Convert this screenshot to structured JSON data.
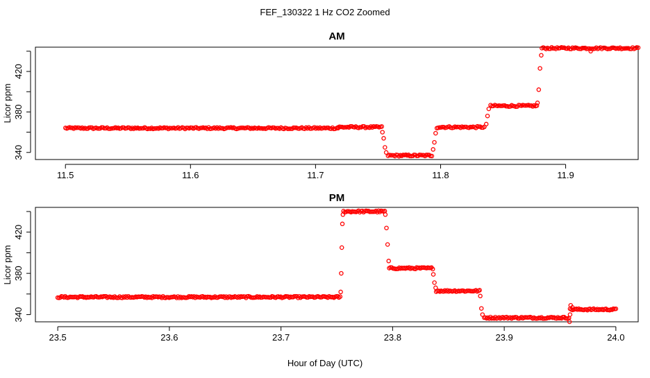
{
  "figure": {
    "title": "FEF_130322  1 Hz CO2 Zoomed",
    "xlabel": "Hour of Day (UTC)"
  },
  "colors": {
    "points": "#ff0000",
    "axis": "#000000",
    "background": "#ffffff"
  },
  "chart_data": [
    {
      "type": "scatter",
      "title": "AM",
      "xlabel": "",
      "ylabel": "Licor ppm",
      "xlim": [
        11.476,
        11.958
      ],
      "ylim": [
        333,
        444
      ],
      "xticks": [
        11.5,
        11.6,
        11.7,
        11.8,
        11.9
      ],
      "xtick_labels": [
        "11.5",
        "11.6",
        "11.7",
        "11.8",
        "11.9"
      ],
      "yticks": [
        340,
        380,
        420
      ],
      "ytick_labels": [
        "340",
        "380",
        "420"
      ],
      "grid": false,
      "marker": "open-circle",
      "series": [
        {
          "segments": [
            {
              "x0": 11.5,
              "x1": 11.718,
              "y": 364
            },
            {
              "x0": 11.718,
              "x1": 11.753,
              "y": 365
            },
            {
              "x0": 11.758,
              "x1": 11.793,
              "y": 337
            },
            {
              "x0": 11.798,
              "x1": 11.835,
              "y": 365
            },
            {
              "x0": 11.84,
              "x1": 11.877,
              "y": 386
            },
            {
              "x0": 11.881,
              "x1": 11.958,
              "y": 443
            }
          ],
          "transitions": [
            {
              "x": 11.7535,
              "y": 360
            },
            {
              "x": 11.7545,
              "y": 354
            },
            {
              "x": 11.7555,
              "y": 345
            },
            {
              "x": 11.7565,
              "y": 340
            },
            {
              "x": 11.794,
              "y": 343
            },
            {
              "x": 11.795,
              "y": 350
            },
            {
              "x": 11.796,
              "y": 359
            },
            {
              "x": 11.797,
              "y": 364
            },
            {
              "x": 11.8365,
              "y": 368
            },
            {
              "x": 11.8375,
              "y": 376
            },
            {
              "x": 11.8385,
              "y": 383
            },
            {
              "x": 11.8775,
              "y": 389
            },
            {
              "x": 11.8785,
              "y": 402
            },
            {
              "x": 11.8795,
              "y": 423
            },
            {
              "x": 11.8805,
              "y": 436
            },
            {
              "x": 11.92,
              "y": 440
            }
          ]
        }
      ]
    },
    {
      "type": "scatter",
      "title": "PM",
      "xlabel": "Hour of Day (UTC)",
      "ylabel": "Licor ppm",
      "xlim": [
        23.48,
        24.02
      ],
      "ylim": [
        333,
        444
      ],
      "xticks": [
        23.5,
        23.6,
        23.7,
        23.8,
        23.9,
        24.0
      ],
      "xtick_labels": [
        "23.5",
        "23.6",
        "23.7",
        "23.8",
        "23.9",
        "24.0"
      ],
      "yticks": [
        340,
        380,
        420
      ],
      "ytick_labels": [
        "340",
        "380",
        "420"
      ],
      "grid": false,
      "marker": "open-circle",
      "series": [
        {
          "segments": [
            {
              "x0": 23.5,
              "x1": 23.753,
              "y": 357
            },
            {
              "x0": 23.756,
              "x1": 23.793,
              "y": 440
            },
            {
              "x0": 23.797,
              "x1": 23.836,
              "y": 385
            },
            {
              "x0": 23.839,
              "x1": 23.878,
              "y": 363
            },
            {
              "x0": 23.882,
              "x1": 23.958,
              "y": 337
            },
            {
              "x0": 23.959,
              "x1": 24.0,
              "y": 345
            }
          ],
          "transitions": [
            {
              "x": 23.7535,
              "y": 362
            },
            {
              "x": 23.754,
              "y": 380
            },
            {
              "x": 23.7545,
              "y": 405
            },
            {
              "x": 23.755,
              "y": 428
            },
            {
              "x": 23.7555,
              "y": 437
            },
            {
              "x": 23.7935,
              "y": 437
            },
            {
              "x": 23.7945,
              "y": 424
            },
            {
              "x": 23.7955,
              "y": 408
            },
            {
              "x": 23.7965,
              "y": 392
            },
            {
              "x": 23.8365,
              "y": 379
            },
            {
              "x": 23.8375,
              "y": 371
            },
            {
              "x": 23.8385,
              "y": 366
            },
            {
              "x": 23.8785,
              "y": 358
            },
            {
              "x": 23.8795,
              "y": 346
            },
            {
              "x": 23.8805,
              "y": 340
            },
            {
              "x": 23.9585,
              "y": 333
            },
            {
              "x": 23.959,
              "y": 340
            },
            {
              "x": 23.9595,
              "y": 349
            },
            {
              "x": 23.961,
              "y": 347
            }
          ]
        }
      ]
    }
  ]
}
